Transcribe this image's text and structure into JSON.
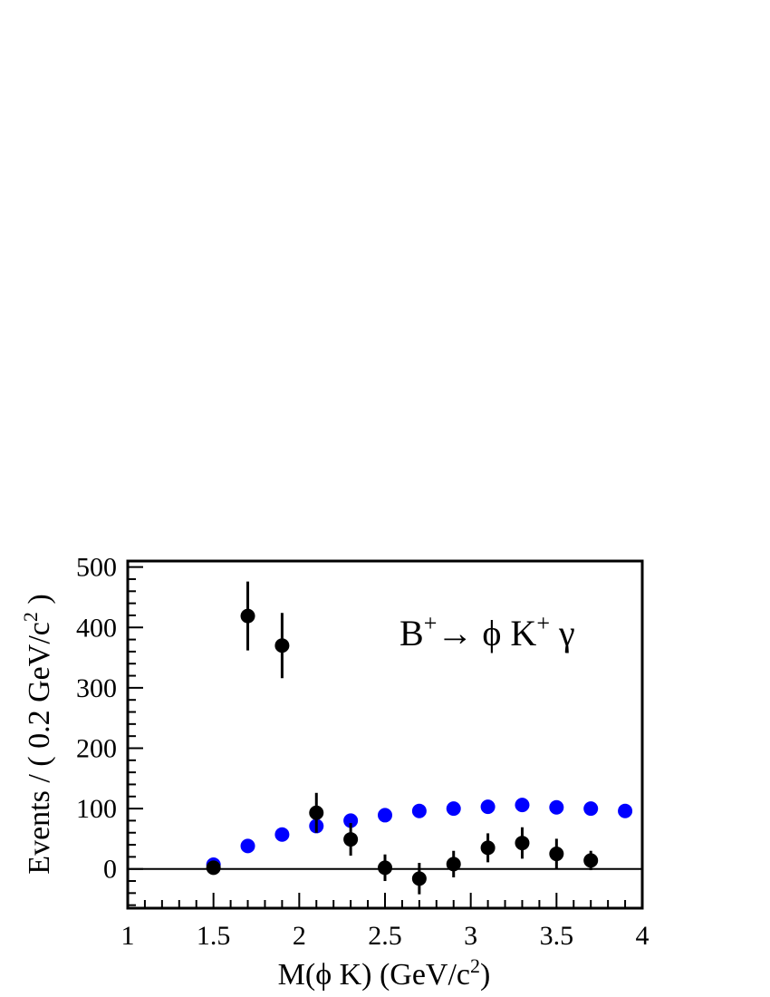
{
  "chart_data": {
    "type": "scatter",
    "xlabel": "M(ϕ K) (GeV/c²)",
    "xlabel_parts": {
      "main": "M(ϕ K) (GeV/c",
      "sup": "2",
      "end": ")"
    },
    "ylabel": "Events / ( 0.2 GeV/c² )",
    "ylabel_parts": {
      "main": "Events / ( 0.2 GeV/c",
      "sup": "2",
      "end": " )"
    },
    "annotation": "B⁺→ ϕ K⁺ γ",
    "annotation_parts": {
      "b": "B",
      "sup1": "+",
      "arrow": "→ ϕ K",
      "sup2": "+",
      "gamma": " γ"
    },
    "xlim": [
      1,
      4
    ],
    "ylim": [
      -65,
      510
    ],
    "xticks": [
      1,
      1.5,
      2,
      2.5,
      3,
      3.5,
      4
    ],
    "xtick_labels": [
      "1",
      "1.5",
      "2",
      "2.5",
      "3",
      "3.5",
      "4"
    ],
    "yticks": [
      0,
      100,
      200,
      300,
      400,
      500
    ],
    "ytick_labels": [
      "0",
      "100",
      "200",
      "300",
      "400",
      "500"
    ],
    "grid": false,
    "legend": false,
    "zero_line": true,
    "series": [
      {
        "color": "#0000ff",
        "x": [
          1.5,
          1.7,
          1.9,
          2.1,
          2.3,
          2.5,
          2.7,
          2.9,
          3.1,
          3.3,
          3.5,
          3.7,
          3.9
        ],
        "y": [
          7,
          38,
          57,
          71,
          80,
          89,
          96,
          100,
          103,
          106,
          102,
          100,
          96
        ]
      },
      {
        "color": "#000000",
        "x": [
          1.5,
          1.7,
          1.9,
          2.1,
          2.3,
          2.5,
          2.7,
          2.9,
          3.1,
          3.3,
          3.5,
          3.7
        ],
        "y": [
          2,
          419,
          370,
          93,
          49,
          2,
          -16,
          8,
          35,
          43,
          25,
          14
        ],
        "yerr": [
          6,
          57,
          54,
          33,
          27,
          22,
          26,
          22,
          24,
          26,
          25,
          16
        ]
      }
    ]
  }
}
